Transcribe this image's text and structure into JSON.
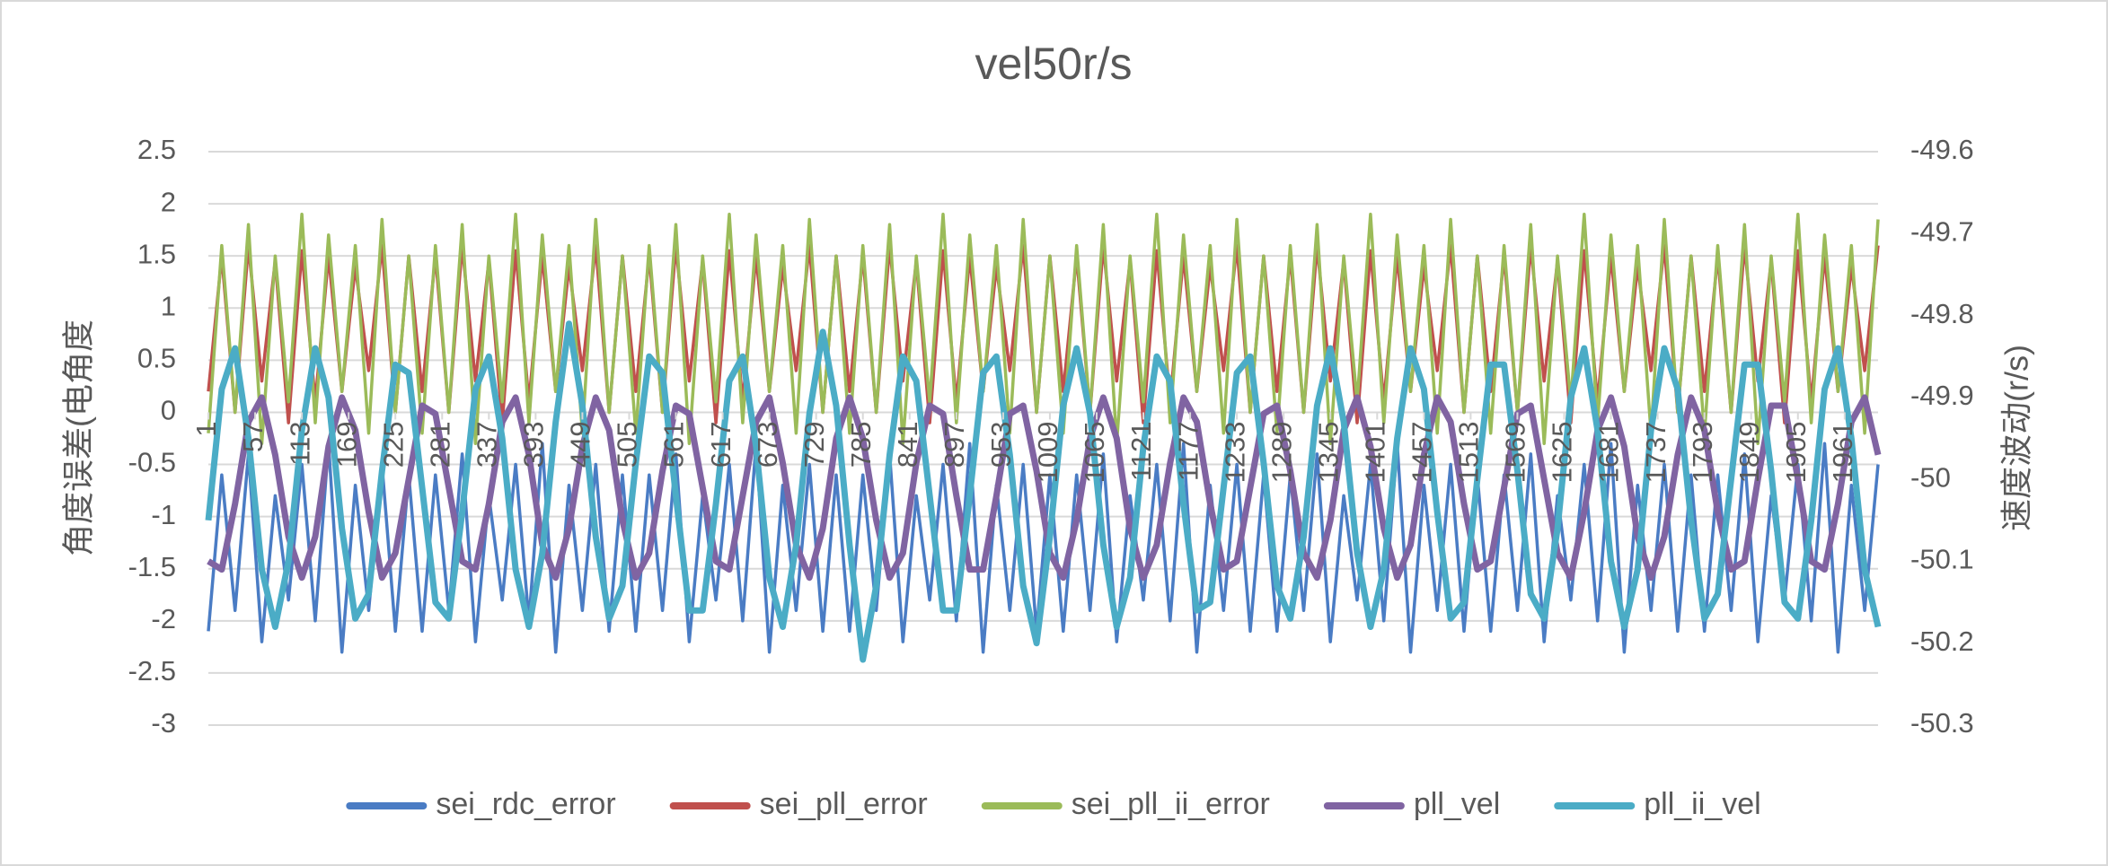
{
  "chart_data": {
    "type": "line",
    "title": "vel50r/s",
    "y_label": "角度误差(电角度",
    "y2_label": "速度波动(r/s)",
    "grid": true,
    "legend": "bottom",
    "xlim": [
      1,
      2001
    ],
    "xticks": [
      1,
      57,
      113,
      169,
      225,
      281,
      337,
      393,
      449,
      505,
      561,
      617,
      673,
      729,
      785,
      841,
      897,
      953,
      1009,
      1065,
      1121,
      1177,
      1233,
      1289,
      1345,
      1401,
      1457,
      1513,
      1569,
      1625,
      1681,
      1737,
      1793,
      1849,
      1905,
      1961
    ],
    "ylim": [
      -3,
      2.5
    ],
    "yticks": [
      -3,
      -2.5,
      -2,
      -1.5,
      -1,
      -0.5,
      0,
      0.5,
      1,
      1.5,
      2,
      2.5
    ],
    "y2lim": [
      -50.3,
      -49.6
    ],
    "y2ticks": [
      -50.3,
      -50.2,
      -50.1,
      -50,
      -49.9,
      -49.8,
      -49.7,
      -49.6
    ],
    "x": [
      1,
      17,
      33,
      49,
      65,
      81,
      97,
      113,
      129,
      145,
      161,
      177,
      193,
      209,
      225,
      241,
      257,
      273,
      289,
      305,
      321,
      337,
      353,
      369,
      385,
      401,
      417,
      433,
      449,
      465,
      481,
      497,
      513,
      529,
      545,
      561,
      577,
      593,
      609,
      625,
      641,
      657,
      673,
      689,
      705,
      721,
      737,
      753,
      769,
      785,
      801,
      817,
      833,
      849,
      865,
      881,
      897,
      913,
      929,
      945,
      961,
      977,
      993,
      1009,
      1025,
      1041,
      1057,
      1073,
      1089,
      1105,
      1121,
      1137,
      1153,
      1169,
      1185,
      1201,
      1217,
      1233,
      1249,
      1265,
      1281,
      1297,
      1313,
      1329,
      1345,
      1361,
      1377,
      1393,
      1409,
      1425,
      1441,
      1457,
      1473,
      1489,
      1505,
      1521,
      1537,
      1553,
      1569,
      1585,
      1601,
      1617,
      1633,
      1649,
      1665,
      1681,
      1697,
      1713,
      1729,
      1745,
      1761,
      1777,
      1793,
      1809,
      1825,
      1841,
      1857,
      1873,
      1889,
      1905,
      1921,
      1937,
      1953,
      1969,
      1985,
      2001
    ],
    "series": [
      {
        "name": "sei_rdc_error",
        "color": "#4a7cc4",
        "values": [
          -2.1,
          -0.6,
          -1.9,
          -0.4,
          -2.2,
          -0.8,
          -1.8,
          -0.5,
          -2.0,
          -0.3,
          -2.3,
          -0.7,
          -1.9,
          -0.5,
          -2.1,
          -0.6,
          -2.1,
          -0.6,
          -1.9,
          -0.4,
          -2.2,
          -0.8,
          -1.8,
          -0.5,
          -2.0,
          -0.3,
          -2.3,
          -0.7,
          -1.9,
          -0.5,
          -2.1,
          -0.6,
          -2.1,
          -0.6,
          -1.9,
          -0.4,
          -2.2,
          -0.8,
          -1.8,
          -0.5,
          -2.0,
          -0.3,
          -2.3,
          -0.7,
          -1.9,
          -0.5,
          -2.1,
          -0.6,
          -2.1,
          -0.6,
          -1.9,
          -0.4,
          -2.2,
          -0.8,
          -1.8,
          -0.5,
          -2.0,
          -0.3,
          -2.3,
          -0.7,
          -1.9,
          -0.5,
          -2.1,
          -0.6,
          -2.1,
          -0.6,
          -1.9,
          -0.4,
          -2.2,
          -0.8,
          -1.8,
          -0.5,
          -2.0,
          -0.3,
          -2.3,
          -0.7,
          -1.9,
          -0.5,
          -2.1,
          -0.6,
          -2.1,
          -0.6,
          -1.9,
          -0.4,
          -2.2,
          -0.8,
          -1.8,
          -0.5,
          -2.0,
          -0.3,
          -2.3,
          -0.7,
          -1.9,
          -0.5,
          -2.1,
          -0.6,
          -2.1,
          -0.6,
          -1.9,
          -0.4,
          -2.2,
          -0.8,
          -1.8,
          -0.5,
          -2.0,
          -0.3,
          -2.3,
          -0.7,
          -1.9,
          -0.5,
          -2.1,
          -0.6,
          -2.1,
          -0.6,
          -1.9,
          -0.4,
          -2.2,
          -0.8,
          -1.8,
          -0.5,
          -2.0,
          -0.3,
          -2.3,
          -0.7,
          -1.9,
          -0.5
        ]
      },
      {
        "name": "sei_pll_error",
        "color": "#c0504d",
        "values": [
          0.2,
          1.5,
          0.0,
          1.6,
          0.3,
          1.45,
          -0.1,
          1.55,
          0.1,
          1.5,
          0.2,
          1.4,
          0.4,
          1.6,
          0.0,
          1.5,
          0.2,
          1.5,
          0.0,
          1.6,
          0.3,
          1.45,
          -0.1,
          1.55,
          0.1,
          1.5,
          0.2,
          1.4,
          0.4,
          1.6,
          0.0,
          1.5,
          0.2,
          1.5,
          0.0,
          1.6,
          0.3,
          1.45,
          -0.1,
          1.55,
          0.1,
          1.5,
          0.2,
          1.4,
          0.4,
          1.6,
          0.0,
          1.5,
          0.2,
          1.5,
          0.0,
          1.6,
          0.3,
          1.45,
          -0.1,
          1.55,
          0.1,
          1.5,
          0.2,
          1.4,
          0.4,
          1.6,
          0.0,
          1.5,
          0.2,
          1.5,
          0.0,
          1.6,
          0.3,
          1.45,
          -0.1,
          1.55,
          0.1,
          1.5,
          0.2,
          1.4,
          0.4,
          1.6,
          0.0,
          1.5,
          0.2,
          1.5,
          0.0,
          1.6,
          0.3,
          1.45,
          -0.1,
          1.55,
          0.1,
          1.5,
          0.2,
          1.4,
          0.4,
          1.6,
          0.0,
          1.5,
          0.2,
          1.5,
          0.0,
          1.6,
          0.3,
          1.45,
          -0.1,
          1.55,
          0.1,
          1.5,
          0.2,
          1.4,
          0.4,
          1.6,
          0.0,
          1.5,
          0.2,
          1.5,
          0.0,
          1.6,
          0.3,
          1.45,
          -0.1,
          1.55,
          0.1,
          1.5,
          0.2,
          1.4,
          0.4,
          1.6
        ]
      },
      {
        "name": "sei_pll_ii_error",
        "color": "#9bbb59",
        "values": [
          -0.2,
          1.6,
          0.0,
          1.8,
          -0.3,
          1.5,
          0.1,
          1.9,
          -0.1,
          1.7,
          0.2,
          1.6,
          -0.2,
          1.85,
          0.0,
          1.5,
          -0.2,
          1.6,
          0.0,
          1.8,
          -0.3,
          1.5,
          0.1,
          1.9,
          -0.1,
          1.7,
          0.2,
          1.6,
          -0.2,
          1.85,
          0.0,
          1.5,
          -0.2,
          1.6,
          0.0,
          1.8,
          -0.3,
          1.5,
          0.1,
          1.9,
          -0.1,
          1.7,
          0.2,
          1.6,
          -0.2,
          1.85,
          0.0,
          1.5,
          -0.2,
          1.6,
          0.0,
          1.8,
          -0.3,
          1.5,
          0.1,
          1.9,
          -0.1,
          1.7,
          0.2,
          1.6,
          -0.2,
          1.85,
          0.0,
          1.5,
          -0.2,
          1.6,
          0.0,
          1.8,
          -0.3,
          1.5,
          0.1,
          1.9,
          -0.1,
          1.7,
          0.2,
          1.6,
          -0.2,
          1.85,
          0.0,
          1.5,
          -0.2,
          1.6,
          0.0,
          1.8,
          -0.3,
          1.5,
          0.1,
          1.9,
          -0.1,
          1.7,
          0.2,
          1.6,
          -0.2,
          1.85,
          0.0,
          1.5,
          -0.2,
          1.6,
          0.0,
          1.8,
          -0.3,
          1.5,
          0.1,
          1.9,
          -0.1,
          1.7,
          0.2,
          1.6,
          -0.2,
          1.85,
          0.0,
          1.5,
          -0.2,
          1.6,
          0.0,
          1.8,
          -0.3,
          1.5,
          0.1,
          1.9,
          -0.1,
          1.7,
          0.2,
          1.6,
          -0.2,
          1.85
        ]
      },
      {
        "name": "pll_vel",
        "color": "#8064a2",
        "axis": "y2",
        "values": [
          -50.1,
          -50.11,
          -50.03,
          -49.93,
          -49.9,
          -49.97,
          -50.07,
          -50.12,
          -50.07,
          -49.96,
          -49.9,
          -49.94,
          -50.04,
          -50.12,
          -50.09,
          -50.0,
          -49.91,
          -49.92,
          -50.01,
          -50.1,
          -50.11,
          -50.03,
          -49.93,
          -49.9,
          -49.97,
          -50.08,
          -50.12,
          -50.06,
          -49.96,
          -49.9,
          -49.94,
          -50.05,
          -50.12,
          -50.09,
          -49.99,
          -49.91,
          -49.92,
          -50.01,
          -50.1,
          -50.11,
          -50.02,
          -49.93,
          -49.9,
          -49.98,
          -50.08,
          -50.12,
          -50.06,
          -49.95,
          -49.9,
          -49.95,
          -50.05,
          -50.12,
          -50.09,
          -49.98,
          -49.91,
          -49.92,
          -50.02,
          -50.11,
          -50.11,
          -50.02,
          -49.92,
          -49.91,
          -49.99,
          -50.09,
          -50.12,
          -50.05,
          -49.95,
          -49.9,
          -49.95,
          -50.06,
          -50.12,
          -50.08,
          -49.98,
          -49.9,
          -49.93,
          -50.03,
          -50.11,
          -50.1,
          -50.01,
          -49.92,
          -49.91,
          -49.99,
          -50.09,
          -50.12,
          -50.05,
          -49.94,
          -49.9,
          -49.96,
          -50.06,
          -50.12,
          -50.08,
          -49.97,
          -49.9,
          -49.93,
          -50.03,
          -50.11,
          -50.1,
          -50.01,
          -49.92,
          -49.91,
          -50.0,
          -50.09,
          -50.12,
          -50.04,
          -49.94,
          -49.9,
          -49.96,
          -50.07,
          -50.12,
          -50.07,
          -49.97,
          -49.9,
          -49.94,
          -50.04,
          -50.11,
          -50.1,
          -50.0,
          -49.91,
          -49.91,
          -50.0,
          -50.1,
          -50.11,
          -50.03,
          -49.93,
          -49.9,
          -49.97
        ]
      },
      {
        "name": "pll_ii_vel",
        "color": "#4bacc6",
        "axis": "y2",
        "values": [
          -50.05,
          -49.89,
          -49.84,
          -49.95,
          -50.11,
          -50.18,
          -50.1,
          -49.94,
          -49.84,
          -49.9,
          -50.06,
          -50.17,
          -50.14,
          -49.99,
          -49.86,
          -49.87,
          -50.01,
          -50.15,
          -50.17,
          -50.04,
          -49.89,
          -49.85,
          -49.95,
          -50.11,
          -50.18,
          -50.09,
          -49.93,
          -49.81,
          -49.91,
          -50.07,
          -50.17,
          -50.13,
          -49.98,
          -49.85,
          -49.87,
          -50.02,
          -50.16,
          -50.16,
          -50.03,
          -49.88,
          -49.85,
          -49.96,
          -50.12,
          -50.18,
          -50.08,
          -49.92,
          -49.82,
          -49.91,
          -50.08,
          -50.22,
          -50.13,
          -49.97,
          -49.85,
          -49.88,
          -50.02,
          -50.16,
          -50.16,
          -50.02,
          -49.87,
          -49.85,
          -49.97,
          -50.13,
          -50.2,
          -50.07,
          -49.91,
          -49.84,
          -49.92,
          -50.08,
          -50.18,
          -50.12,
          -49.96,
          -49.85,
          -49.88,
          -50.03,
          -50.16,
          -50.15,
          -50.01,
          -49.87,
          -49.85,
          -49.98,
          -50.13,
          -50.17,
          -50.07,
          -49.91,
          -49.84,
          -49.93,
          -50.09,
          -50.18,
          -50.11,
          -49.95,
          -49.84,
          -49.89,
          -50.04,
          -50.17,
          -50.15,
          -50.0,
          -49.86,
          -49.86,
          -49.99,
          -50.14,
          -50.17,
          -50.06,
          -49.9,
          -49.84,
          -49.94,
          -50.1,
          -50.18,
          -50.11,
          -49.94,
          -49.84,
          -49.89,
          -50.05,
          -50.17,
          -50.14,
          -50.0,
          -49.86,
          -49.86,
          -49.99,
          -50.15,
          -50.17,
          -50.05,
          -49.89,
          -49.84,
          -49.95,
          -50.11,
          -50.18
        ]
      }
    ]
  }
}
